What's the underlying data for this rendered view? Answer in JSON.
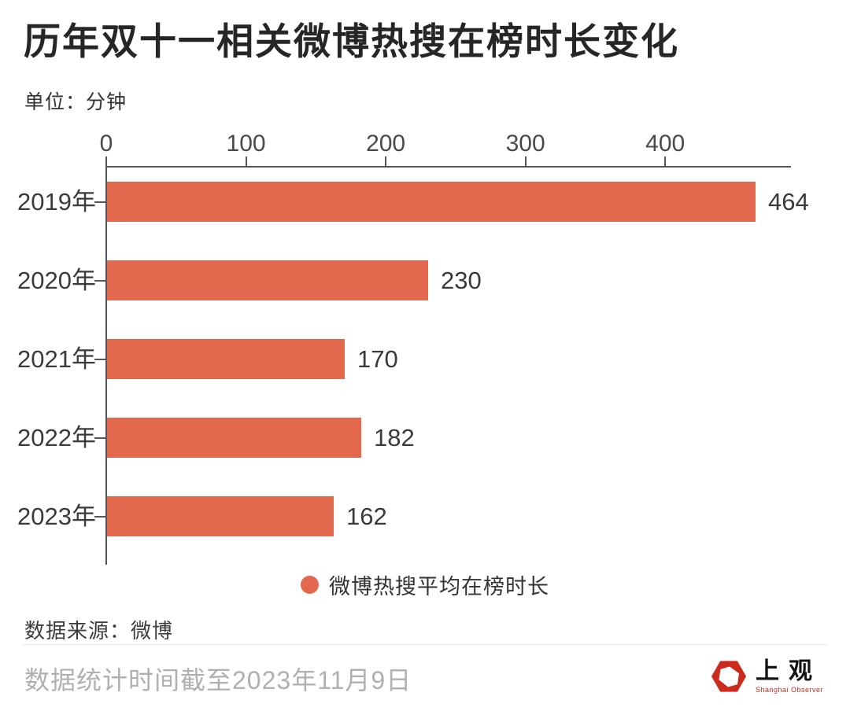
{
  "header": {
    "title": "历年双十一相关微博热搜在榜时长变化",
    "unit": "单位：分钟"
  },
  "chart_data": {
    "type": "bar",
    "orientation": "horizontal",
    "title": "历年双十一相关微博热搜在榜时长变化",
    "categories": [
      "2019年",
      "2020年",
      "2021年",
      "2022年",
      "2023年"
    ],
    "values": [
      464,
      230,
      170,
      182,
      162
    ],
    "series_name": "微博热搜平均在榜时长",
    "value_unit": "分钟",
    "xlim": [
      0,
      490
    ],
    "xticks": [
      0,
      100,
      200,
      300,
      400
    ],
    "grid": false,
    "legend_position": "bottom-center",
    "bar_labels": true
  },
  "footer": {
    "source": "数据来源：微博",
    "note": "数据统计时间截至2023年11月9日"
  },
  "logo": {
    "name": "上观",
    "subtitle": "Shanghai Observer"
  },
  "colors": {
    "bar": "#E2694E",
    "axis": "#555555",
    "title": "#262626",
    "muted": "#B0B0B0",
    "logo_red": "#CD2A1E"
  }
}
